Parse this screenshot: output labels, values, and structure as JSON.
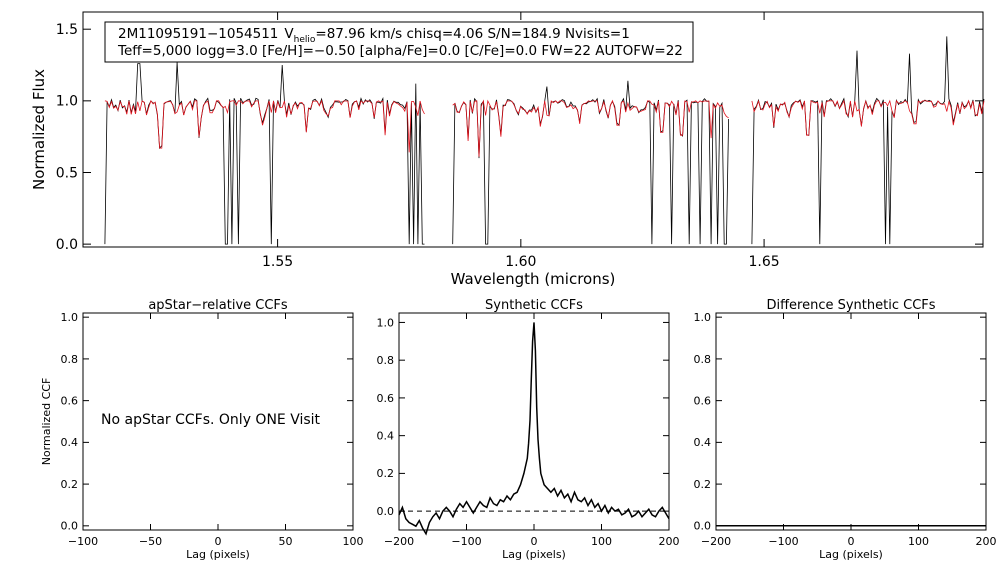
{
  "header": {
    "line1_id": "2M11095191−1054511",
    "line1_v": "V",
    "line1_sub": "helio",
    "line1_rest": "=87.96 km/s  chisq=4.06  S/N=184.9  Nvisits=1",
    "line2": "Teff=5,000 logg=3.0 [Fe/H]=−0.50 [alpha/Fe]=0.0 [C/Fe]=0.0 FW=22 AUTOFW=22"
  },
  "colors": {
    "observed": "#000000",
    "model": "#e0141e"
  },
  "chart_data": [
    {
      "id": "spectrum",
      "type": "line",
      "title": "",
      "xlabel": "Wavelength (microns)",
      "ylabel": "Normalized Flux",
      "xlim": [
        1.51,
        1.695
      ],
      "ylim": [
        -0.02,
        1.62
      ],
      "xticks": [
        1.55,
        1.6,
        1.65
      ],
      "xtick_labels": [
        "1.55",
        "1.60",
        "1.65"
      ],
      "yticks": [
        0.0,
        0.5,
        1.0,
        1.5
      ],
      "ytick_labels": [
        "0.0",
        "0.5",
        "1.0",
        "1.5"
      ],
      "chips": [
        [
          1.5145,
          1.5805
        ],
        [
          1.586,
          1.643
        ],
        [
          1.6475,
          1.6955
        ]
      ],
      "series": [
        {
          "name": "observed spectrum",
          "continuum": 1.0,
          "emission_spikes": [
            [
              1.5215,
              1.26
            ],
            [
              1.5295,
              1.27
            ],
            [
              1.551,
              1.25
            ],
            [
              1.5785,
              1.12
            ],
            [
              1.6055,
              1.1
            ],
            [
              1.622,
              1.14
            ],
            [
              1.6615,
              1.1
            ],
            [
              1.669,
              1.35
            ],
            [
              1.6798,
              1.33
            ],
            [
              1.6875,
              1.45
            ]
          ],
          "zero_dropouts": [
            1.5145,
            1.5395,
            1.5405,
            1.542,
            1.5488,
            1.577,
            1.578,
            1.579,
            1.58,
            1.586,
            1.593,
            1.627,
            1.631,
            1.6345,
            1.637,
            1.639,
            1.6405,
            1.642,
            1.6475,
            1.6615,
            1.675,
            1.676,
            1.6955
          ]
        },
        {
          "name": "model spectrum",
          "continuum": 1.0,
          "deep_lines": [
            [
              1.526,
              0.67
            ],
            [
              1.534,
              0.75
            ],
            [
              1.547,
              0.83
            ],
            [
              1.556,
              0.78
            ],
            [
              1.572,
              0.76
            ],
            [
              1.5772,
              0.64
            ],
            [
              1.589,
              0.72
            ],
            [
              1.5915,
              0.61
            ],
            [
              1.596,
              0.75
            ],
            [
              1.604,
              0.82
            ],
            [
              1.612,
              0.84
            ],
            [
              1.62,
              0.83
            ],
            [
              1.629,
              0.78
            ],
            [
              1.633,
              0.76
            ],
            [
              1.639,
              0.74
            ],
            [
              1.652,
              0.82
            ],
            [
              1.659,
              0.76
            ],
            [
              1.67,
              0.82
            ],
            [
              1.681,
              0.84
            ],
            [
              1.689,
              0.83
            ]
          ]
        }
      ]
    },
    {
      "id": "apstar-ccf",
      "type": "line",
      "title": "apStar−relative CCFs",
      "xlabel": "Lag (pixels)",
      "ylabel": "Normalized CCF",
      "xlim": [
        -100,
        100
      ],
      "ylim": [
        -0.02,
        1.02
      ],
      "xticks": [
        -100,
        -50,
        0,
        50,
        100
      ],
      "xtick_labels": [
        "−100",
        "−50",
        "0",
        "50",
        "100"
      ],
      "yticks": [
        0.0,
        0.2,
        0.4,
        0.6,
        0.8,
        1.0
      ],
      "ytick_labels": [
        "0.0",
        "0.2",
        "0.4",
        "0.6",
        "0.8",
        "1.0"
      ],
      "annotation": "No apStar CCFs.  Only ONE Visit",
      "series": []
    },
    {
      "id": "synthetic-ccf",
      "type": "line",
      "title": "Synthetic CCFs",
      "xlabel": "Lag (pixels)",
      "ylabel": "",
      "xlim": [
        -200,
        200
      ],
      "ylim": [
        -0.1,
        1.05
      ],
      "xticks": [
        -200,
        -100,
        0,
        100,
        200
      ],
      "xtick_labels": [
        "−200",
        "−100",
        "0",
        "100",
        "200"
      ],
      "yticks": [
        0.0,
        0.2,
        0.4,
        0.6,
        0.8,
        1.0
      ],
      "ytick_labels": [
        "0.0",
        "0.2",
        "0.4",
        "0.6",
        "0.8",
        "1.0"
      ],
      "zero_line": 0.0,
      "series": [
        {
          "name": "synthetic CCF",
          "x": [
            -200,
            -195,
            -190,
            -185,
            -180,
            -175,
            -170,
            -165,
            -160,
            -155,
            -150,
            -145,
            -140,
            -135,
            -130,
            -125,
            -120,
            -115,
            -110,
            -105,
            -100,
            -95,
            -90,
            -85,
            -80,
            -75,
            -70,
            -65,
            -60,
            -55,
            -50,
            -45,
            -40,
            -35,
            -30,
            -25,
            -20,
            -15,
            -10,
            -8,
            -6,
            -4,
            -2,
            0,
            2,
            4,
            6,
            8,
            10,
            15,
            20,
            25,
            30,
            35,
            40,
            45,
            50,
            55,
            60,
            65,
            70,
            75,
            80,
            85,
            90,
            95,
            100,
            105,
            110,
            115,
            120,
            125,
            130,
            135,
            140,
            145,
            150,
            155,
            160,
            165,
            170,
            175,
            180,
            185,
            190,
            195,
            200
          ],
          "y": [
            -0.02,
            0.02,
            -0.04,
            -0.06,
            -0.07,
            -0.08,
            -0.05,
            -0.09,
            -0.12,
            -0.06,
            -0.03,
            -0.01,
            -0.04,
            0.0,
            0.02,
            0.0,
            -0.03,
            0.01,
            0.04,
            0.02,
            0.05,
            0.02,
            -0.01,
            0.02,
            0.05,
            0.03,
            0.02,
            0.07,
            0.04,
            0.03,
            0.06,
            0.05,
            0.08,
            0.06,
            0.09,
            0.1,
            0.14,
            0.2,
            0.28,
            0.36,
            0.48,
            0.7,
            0.9,
            1.0,
            0.85,
            0.55,
            0.38,
            0.28,
            0.2,
            0.14,
            0.12,
            0.1,
            0.12,
            0.08,
            0.11,
            0.07,
            0.09,
            0.05,
            0.1,
            0.06,
            0.05,
            0.07,
            0.03,
            0.06,
            0.02,
            0.04,
            0.0,
            0.03,
            -0.01,
            0.02,
            0.0,
            0.01,
            -0.02,
            -0.01,
            0.01,
            -0.03,
            -0.02,
            0.0,
            -0.03,
            -0.01,
            0.01,
            -0.02,
            -0.03,
            0.0,
            0.02,
            -0.01,
            -0.04
          ]
        }
      ]
    },
    {
      "id": "difference-ccf",
      "type": "line",
      "title": "Difference Synthetic CCFs",
      "xlabel": "Lag (pixels)",
      "ylabel": "",
      "xlim": [
        -200,
        200
      ],
      "ylim": [
        -0.02,
        1.02
      ],
      "xticks": [
        -200,
        -100,
        0,
        100,
        200
      ],
      "xtick_labels": [
        "−200",
        "−100",
        "0",
        "100",
        "200"
      ],
      "yticks": [
        0.0,
        0.2,
        0.4,
        0.6,
        0.8,
        1.0
      ],
      "ytick_labels": [
        "0.0",
        "0.2",
        "0.4",
        "0.6",
        "0.8",
        "1.0"
      ],
      "series": [
        {
          "name": "difference CCF",
          "x": [
            -200,
            200
          ],
          "y": [
            0.0,
            0.0
          ]
        }
      ]
    }
  ]
}
